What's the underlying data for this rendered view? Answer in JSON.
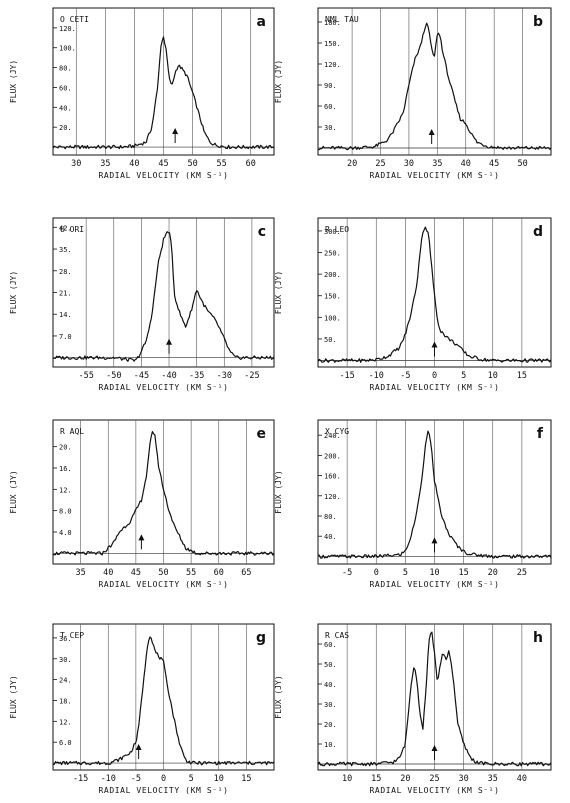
{
  "figure": {
    "background": "#ffffff",
    "ink": "#111111"
  },
  "chart_data": [
    {
      "type": "line",
      "panel": "a",
      "star": "O CETI",
      "xlabel": "RADIAL VELOCITY (KM S⁻¹)",
      "ylabel": "FLUX (JY)",
      "xlim": [
        26,
        64
      ],
      "ylim": [
        -8,
        140
      ],
      "xticks": [
        30,
        35,
        40,
        45,
        50,
        55,
        60
      ],
      "yticks": [
        20,
        40,
        60,
        80,
        100,
        120
      ],
      "ytick_labels": [
        "20.",
        "40.",
        "60.",
        "80.",
        "100.",
        "120."
      ],
      "grid_x": true,
      "arrow_x": 47,
      "series": [
        {
          "x": [
            26,
            30,
            34,
            38,
            40,
            42,
            43,
            44,
            44.5,
            45,
            45.5,
            46,
            46.5,
            47,
            47.5,
            48,
            49,
            50,
            51,
            52,
            53,
            54,
            56,
            60,
            64
          ],
          "y": [
            0,
            0,
            0,
            0,
            1,
            5,
            20,
            60,
            100,
            112,
            95,
            68,
            62,
            75,
            82,
            80,
            72,
            55,
            35,
            15,
            5,
            2,
            0,
            0,
            0
          ]
        }
      ]
    },
    {
      "type": "line",
      "panel": "b",
      "star": "NML TAU",
      "xlabel": "RADIAL VELOCITY (KM S⁻¹)",
      "ylabel": "FLUX (JY)",
      "xlim": [
        14,
        55
      ],
      "ylim": [
        -10,
        200
      ],
      "xticks": [
        20,
        25,
        30,
        35,
        40,
        45,
        50
      ],
      "yticks": [
        30,
        60,
        90,
        120,
        150,
        180
      ],
      "ytick_labels": [
        "30.",
        "60.",
        "90.",
        "120.",
        "150.",
        "180."
      ],
      "grid_x": true,
      "arrow_x": 34,
      "series": [
        {
          "x": [
            14,
            20,
            24,
            26,
            27,
            28,
            29,
            30,
            31,
            32,
            33,
            33.5,
            34,
            34.5,
            35,
            35.5,
            36,
            37,
            38,
            39,
            40,
            41,
            42,
            44,
            47,
            50,
            55
          ],
          "y": [
            0,
            0,
            2,
            10,
            20,
            35,
            50,
            90,
            125,
            145,
            178,
            170,
            140,
            130,
            165,
            160,
            135,
            100,
            70,
            42,
            35,
            20,
            8,
            2,
            0,
            0,
            0
          ]
        }
      ]
    },
    {
      "type": "line",
      "panel": "c",
      "star": "U ORI",
      "xlabel": "RADIAL VELOCITY (KM S⁻¹)",
      "ylabel": "FLUX (JY)",
      "xlim": [
        -61,
        -21
      ],
      "ylim": [
        -3,
        45
      ],
      "xticks": [
        -55,
        -50,
        -45,
        -40,
        -35,
        -30,
        -25
      ],
      "yticks": [
        7,
        14,
        21,
        28,
        35,
        42
      ],
      "ytick_labels": [
        "7.0",
        "14.",
        "21.",
        "28.",
        "35.",
        "42."
      ],
      "grid_x": true,
      "arrow_x": -40,
      "series": [
        {
          "x": [
            -61,
            -55,
            -50,
            -46,
            -45,
            -44,
            -43,
            -42,
            -41,
            -40.5,
            -40,
            -39.5,
            -39,
            -38,
            -37,
            -36,
            -35,
            -34,
            -33,
            -32,
            -31,
            -30,
            -29,
            -28,
            -25,
            -21
          ],
          "y": [
            0,
            0,
            0,
            -1,
            2,
            6,
            15,
            30,
            38,
            40,
            41,
            35,
            20,
            14,
            10,
            15,
            22,
            18,
            15,
            13,
            10,
            6,
            2,
            0,
            0,
            0
          ]
        }
      ]
    },
    {
      "type": "line",
      "panel": "d",
      "star": "R LEO",
      "xlabel": "RADIAL VELOCITY (KM S⁻¹)",
      "ylabel": "FLUX (JY)",
      "xlim": [
        -20,
        20
      ],
      "ylim": [
        -15,
        330
      ],
      "xticks": [
        -15,
        -10,
        -5,
        0,
        5,
        10,
        15
      ],
      "yticks": [
        50,
        100,
        150,
        200,
        250,
        300
      ],
      "ytick_labels": [
        "50.",
        "100.",
        "150.",
        "200.",
        "250.",
        "300."
      ],
      "grid_x": true,
      "arrow_x": 0,
      "series": [
        {
          "x": [
            -20,
            -12,
            -10,
            -8,
            -6,
            -5,
            -4,
            -3,
            -2.5,
            -2,
            -1.5,
            -1,
            -0.5,
            0,
            0.5,
            1,
            2,
            3,
            4,
            5,
            6,
            8,
            10,
            20
          ],
          "y": [
            0,
            0,
            2,
            10,
            30,
            60,
            110,
            180,
            250,
            300,
            310,
            290,
            220,
            150,
            95,
            70,
            55,
            45,
            35,
            20,
            10,
            3,
            0,
            0
          ]
        }
      ]
    },
    {
      "type": "line",
      "panel": "e",
      "star": "R AQL",
      "xlabel": "RADIAL VELOCITY (KM S⁻¹)",
      "ylabel": "FLUX (JY)",
      "xlim": [
        30,
        70
      ],
      "ylim": [
        -2,
        25
      ],
      "xticks": [
        35,
        40,
        45,
        50,
        55,
        60,
        65
      ],
      "yticks": [
        4,
        8,
        12,
        16,
        20
      ],
      "ytick_labels": [
        "4.0",
        "8.0",
        "12.",
        "16.",
        "20."
      ],
      "grid_x": true,
      "arrow_x": 46,
      "series": [
        {
          "x": [
            30,
            36,
            39,
            40,
            41,
            42,
            43,
            44,
            45,
            46,
            47,
            47.5,
            48,
            48.5,
            49,
            50,
            51,
            52,
            53,
            54,
            56,
            60,
            70
          ],
          "y": [
            0,
            0,
            0,
            1,
            2,
            4,
            5,
            6,
            8,
            10,
            15,
            20,
            23,
            22,
            17,
            12,
            8,
            5,
            3,
            1,
            0,
            0,
            0
          ]
        }
      ]
    },
    {
      "type": "line",
      "panel": "f",
      "star": "X CYG",
      "xlabel": "RADIAL VELOCITY (KM S⁻¹)",
      "ylabel": "FLUX (JY)",
      "xlim": [
        -10,
        30
      ],
      "ylim": [
        -15,
        270
      ],
      "xticks": [
        -5,
        0,
        5,
        10,
        15,
        20,
        25
      ],
      "yticks": [
        40,
        80,
        120,
        160,
        200,
        240
      ],
      "ytick_labels": [
        "40.",
        "80.",
        "120.",
        "160.",
        "200.",
        "240."
      ],
      "grid_x": true,
      "arrow_x": 10,
      "series": [
        {
          "x": [
            -10,
            0,
            4,
            5,
            6,
            7,
            7.5,
            8,
            8.5,
            9,
            9.5,
            10,
            11,
            12,
            13,
            14,
            15,
            16,
            18,
            20,
            30
          ],
          "y": [
            0,
            0,
            3,
            10,
            40,
            90,
            130,
            170,
            230,
            250,
            210,
            150,
            90,
            55,
            35,
            20,
            10,
            5,
            2,
            0,
            0
          ]
        }
      ]
    },
    {
      "type": "line",
      "panel": "g",
      "star": "T CEP",
      "xlabel": "RADIAL VELOCITY (KM S⁻¹)",
      "ylabel": "FLUX (JY)",
      "xlim": [
        -20,
        20
      ],
      "ylim": [
        -2,
        40
      ],
      "xticks": [
        -15,
        -10,
        -5,
        0,
        5,
        10,
        15
      ],
      "yticks": [
        6,
        12,
        18,
        24,
        30,
        36
      ],
      "ytick_labels": [
        "6.0",
        "12.",
        "18.",
        "24.",
        "30.",
        "36."
      ],
      "grid_x": true,
      "arrow_x": -4.5,
      "series": [
        {
          "x": [
            -20,
            -10,
            -8,
            -6,
            -5,
            -4.5,
            -4,
            -3.5,
            -3,
            -2.5,
            -2,
            -1.5,
            -1,
            0,
            0.5,
            1,
            2,
            3,
            4,
            5,
            8,
            20
          ],
          "y": [
            0,
            0,
            1,
            3,
            6,
            10,
            18,
            25,
            33,
            37,
            35,
            32,
            31,
            29,
            24,
            20,
            12,
            5,
            1,
            0,
            0,
            0
          ]
        }
      ]
    },
    {
      "type": "line",
      "panel": "h",
      "star": "R CAS",
      "xlabel": "RADIAL VELOCITY (KM S⁻¹)",
      "ylabel": "FLUX (JY)",
      "xlim": [
        5,
        45
      ],
      "ylim": [
        -3,
        70
      ],
      "xticks": [
        10,
        15,
        20,
        25,
        30,
        35,
        40
      ],
      "yticks": [
        10,
        20,
        30,
        40,
        50,
        60
      ],
      "ytick_labels": [
        "10.",
        "20.",
        "30.",
        "40.",
        "50.",
        "60."
      ],
      "grid_x": true,
      "arrow_x": 25,
      "series": [
        {
          "x": [
            5,
            15,
            18,
            19,
            20,
            21,
            21.5,
            22,
            22.5,
            23,
            23.5,
            24,
            24.5,
            25,
            25.5,
            26,
            26.5,
            27,
            27.5,
            28,
            28.5,
            29,
            30,
            31,
            32,
            34,
            45
          ],
          "y": [
            0,
            0,
            1,
            3,
            10,
            40,
            50,
            42,
            25,
            18,
            35,
            60,
            68,
            55,
            40,
            50,
            56,
            52,
            57,
            48,
            35,
            20,
            10,
            4,
            1,
            0,
            0
          ]
        }
      ]
    }
  ]
}
